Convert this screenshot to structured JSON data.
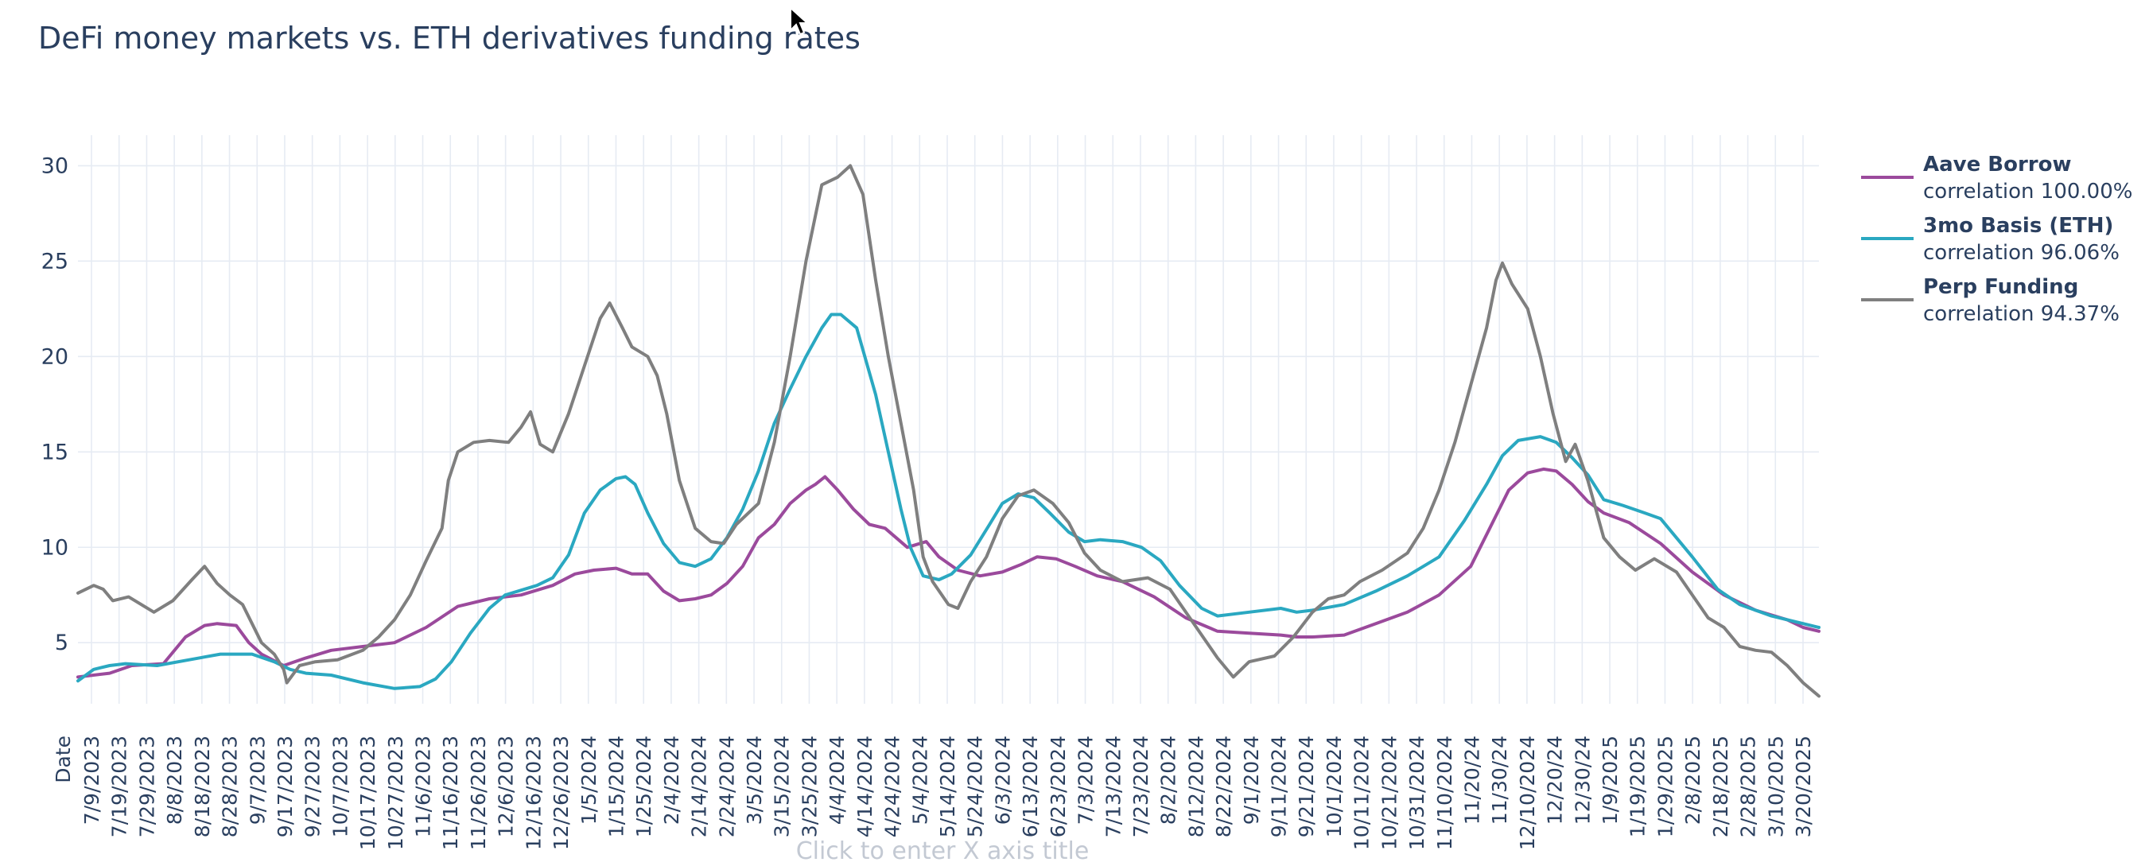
{
  "chart_data": {
    "type": "line",
    "title": "DeFi money markets vs. ETH derivatives funding rates",
    "xlabel_placeholder": "Click to enter X axis title",
    "x_first_label": "Date",
    "ylim": [
      1.8,
      31.6
    ],
    "yticks": [
      5,
      10,
      15,
      20,
      25,
      30
    ],
    "ytick_labels": [
      "5",
      "10",
      "15",
      "20",
      "25",
      "30"
    ],
    "x_tick_labels": [
      "7/9/2023",
      "7/19/2023",
      "7/29/2023",
      "8/8/2023",
      "8/18/2023",
      "8/28/2023",
      "9/7/2023",
      "9/17/2023",
      "9/27/2023",
      "10/7/2023",
      "10/17/2023",
      "10/27/2023",
      "11/6/2023",
      "11/16/2023",
      "11/26/2023",
      "12/6/2023",
      "12/16/2023",
      "12/26/2023",
      "1/5/2024",
      "1/15/2024",
      "1/25/2024",
      "2/4/2024",
      "2/14/2024",
      "2/24/2024",
      "3/5/2024",
      "3/15/2024",
      "3/25/2024",
      "4/4/2024",
      "4/14/2024",
      "4/24/2024",
      "5/4/2024",
      "5/14/2024",
      "5/24/2024",
      "6/3/2024",
      "6/13/2024",
      "6/23/2024",
      "7/3/2024",
      "7/13/2024",
      "7/23/2024",
      "8/2/2024",
      "8/12/2024",
      "8/22/2024",
      "9/1/2024",
      "9/11/2024",
      "9/21/2024",
      "10/1/2024",
      "10/11/2024",
      "10/21/2024",
      "10/31/2024",
      "11/10/2024",
      "11/20/24",
      "11/30/24",
      "12/10/2024",
      "12/20/24",
      "12/30/24",
      "1/9/2025",
      "1/19/2025",
      "1/29/2025",
      "2/8/2025",
      "2/18/2025",
      "2/28/2025",
      "3/10/2025",
      "3/20/2025"
    ],
    "grid": true,
    "legend_position": "right",
    "series": [
      {
        "name": "Aave Borrow",
        "legend_sub": "correlation 100.00%",
        "color": "#9b4a9c",
        "points": [
          [
            0,
            3.2
          ],
          [
            10,
            3.4
          ],
          [
            17,
            3.8
          ],
          [
            27,
            3.9
          ],
          [
            34,
            5.3
          ],
          [
            40,
            5.9
          ],
          [
            44,
            6.0
          ],
          [
            50,
            5.9
          ],
          [
            54,
            5.0
          ],
          [
            58,
            4.4
          ],
          [
            65,
            3.8
          ],
          [
            72,
            4.2
          ],
          [
            80,
            4.6
          ],
          [
            90,
            4.8
          ],
          [
            100,
            5.0
          ],
          [
            110,
            5.8
          ],
          [
            120,
            6.9
          ],
          [
            130,
            7.3
          ],
          [
            140,
            7.5
          ],
          [
            150,
            8.0
          ],
          [
            157,
            8.6
          ],
          [
            163,
            8.8
          ],
          [
            170,
            8.9
          ],
          [
            175,
            8.6
          ],
          [
            180,
            8.6
          ],
          [
            185,
            7.7
          ],
          [
            190,
            7.2
          ],
          [
            195,
            7.3
          ],
          [
            200,
            7.5
          ],
          [
            205,
            8.1
          ],
          [
            210,
            9.0
          ],
          [
            215,
            10.5
          ],
          [
            220,
            11.2
          ],
          [
            225,
            12.3
          ],
          [
            230,
            13.0
          ],
          [
            233,
            13.3
          ],
          [
            236,
            13.7
          ],
          [
            240,
            13.0
          ],
          [
            245,
            12.0
          ],
          [
            250,
            11.2
          ],
          [
            255,
            11.0
          ],
          [
            262,
            10.0
          ],
          [
            268,
            10.3
          ],
          [
            272,
            9.5
          ],
          [
            278,
            8.8
          ],
          [
            285,
            8.5
          ],
          [
            292,
            8.7
          ],
          [
            298,
            9.1
          ],
          [
            303,
            9.5
          ],
          [
            309,
            9.4
          ],
          [
            315,
            9.0
          ],
          [
            322,
            8.5
          ],
          [
            330,
            8.2
          ],
          [
            340,
            7.4
          ],
          [
            350,
            6.3
          ],
          [
            360,
            5.6
          ],
          [
            370,
            5.5
          ],
          [
            380,
            5.4
          ],
          [
            385,
            5.3
          ],
          [
            390,
            5.3
          ],
          [
            400,
            5.4
          ],
          [
            410,
            6.0
          ],
          [
            420,
            6.6
          ],
          [
            430,
            7.5
          ],
          [
            440,
            9.0
          ],
          [
            446,
            11.0
          ],
          [
            452,
            13.0
          ],
          [
            458,
            13.9
          ],
          [
            463,
            14.1
          ],
          [
            467,
            14.0
          ],
          [
            472,
            13.3
          ],
          [
            477,
            12.4
          ],
          [
            482,
            11.8
          ],
          [
            490,
            11.3
          ],
          [
            500,
            10.2
          ],
          [
            510,
            8.7
          ],
          [
            520,
            7.5
          ],
          [
            530,
            6.7
          ],
          [
            540,
            6.2
          ],
          [
            545,
            5.8
          ],
          [
            550,
            5.6
          ]
        ]
      },
      {
        "name": "3mo Basis (ETH)",
        "legend_sub": "correlation 96.06%",
        "color": "#2aa8c1",
        "points": [
          [
            0,
            3.0
          ],
          [
            5,
            3.6
          ],
          [
            10,
            3.8
          ],
          [
            15,
            3.9
          ],
          [
            25,
            3.8
          ],
          [
            35,
            4.1
          ],
          [
            45,
            4.4
          ],
          [
            55,
            4.4
          ],
          [
            62,
            4.0
          ],
          [
            67,
            3.6
          ],
          [
            72,
            3.4
          ],
          [
            80,
            3.3
          ],
          [
            90,
            2.9
          ],
          [
            100,
            2.6
          ],
          [
            108,
            2.7
          ],
          [
            113,
            3.1
          ],
          [
            118,
            4.0
          ],
          [
            124,
            5.5
          ],
          [
            130,
            6.8
          ],
          [
            135,
            7.5
          ],
          [
            145,
            8.0
          ],
          [
            150,
            8.4
          ],
          [
            155,
            9.6
          ],
          [
            160,
            11.8
          ],
          [
            165,
            13.0
          ],
          [
            170,
            13.6
          ],
          [
            173,
            13.7
          ],
          [
            176,
            13.3
          ],
          [
            180,
            11.8
          ],
          [
            185,
            10.2
          ],
          [
            190,
            9.2
          ],
          [
            195,
            9.0
          ],
          [
            200,
            9.4
          ],
          [
            205,
            10.5
          ],
          [
            210,
            12.0
          ],
          [
            215,
            14.0
          ],
          [
            220,
            16.5
          ],
          [
            225,
            18.3
          ],
          [
            230,
            20.0
          ],
          [
            235,
            21.5
          ],
          [
            238,
            22.2
          ],
          [
            241,
            22.2
          ],
          [
            246,
            21.5
          ],
          [
            252,
            18.0
          ],
          [
            256,
            15.0
          ],
          [
            260,
            12.0
          ],
          [
            263,
            10.0
          ],
          [
            267,
            8.5
          ],
          [
            272,
            8.3
          ],
          [
            276,
            8.6
          ],
          [
            282,
            9.6
          ],
          [
            288,
            11.2
          ],
          [
            292,
            12.3
          ],
          [
            297,
            12.8
          ],
          [
            302,
            12.6
          ],
          [
            307,
            11.8
          ],
          [
            313,
            10.8
          ],
          [
            318,
            10.3
          ],
          [
            323,
            10.4
          ],
          [
            330,
            10.3
          ],
          [
            336,
            10.0
          ],
          [
            342,
            9.3
          ],
          [
            348,
            8.0
          ],
          [
            355,
            6.8
          ],
          [
            360,
            6.4
          ],
          [
            370,
            6.6
          ],
          [
            380,
            6.8
          ],
          [
            385,
            6.6
          ],
          [
            390,
            6.7
          ],
          [
            400,
            7.0
          ],
          [
            410,
            7.7
          ],
          [
            420,
            8.5
          ],
          [
            430,
            9.5
          ],
          [
            438,
            11.4
          ],
          [
            445,
            13.3
          ],
          [
            450,
            14.8
          ],
          [
            455,
            15.6
          ],
          [
            462,
            15.8
          ],
          [
            467,
            15.5
          ],
          [
            472,
            14.7
          ],
          [
            477,
            13.8
          ],
          [
            482,
            12.5
          ],
          [
            488,
            12.2
          ],
          [
            495,
            11.8
          ],
          [
            500,
            11.5
          ],
          [
            510,
            9.5
          ],
          [
            518,
            7.8
          ],
          [
            525,
            7.0
          ],
          [
            535,
            6.4
          ],
          [
            545,
            6.0
          ],
          [
            550,
            5.8
          ]
        ]
      },
      {
        "name": "Perp Funding",
        "legend_sub": "correlation 94.37%",
        "color": "#7f7f7f",
        "points": [
          [
            0,
            7.6
          ],
          [
            5,
            8.0
          ],
          [
            8,
            7.8
          ],
          [
            11,
            7.2
          ],
          [
            16,
            7.4
          ],
          [
            20,
            7.0
          ],
          [
            24,
            6.6
          ],
          [
            30,
            7.2
          ],
          [
            36,
            8.3
          ],
          [
            40,
            9.0
          ],
          [
            44,
            8.1
          ],
          [
            48,
            7.5
          ],
          [
            52,
            7.0
          ],
          [
            55,
            6.0
          ],
          [
            58,
            5.0
          ],
          [
            62,
            4.4
          ],
          [
            65,
            3.6
          ],
          [
            66,
            2.9
          ],
          [
            70,
            3.8
          ],
          [
            75,
            4.0
          ],
          [
            82,
            4.1
          ],
          [
            90,
            4.6
          ],
          [
            95,
            5.3
          ],
          [
            100,
            6.2
          ],
          [
            105,
            7.5
          ],
          [
            110,
            9.3
          ],
          [
            115,
            11.0
          ],
          [
            117,
            13.5
          ],
          [
            120,
            15.0
          ],
          [
            125,
            15.5
          ],
          [
            130,
            15.6
          ],
          [
            136,
            15.5
          ],
          [
            140,
            16.3
          ],
          [
            143,
            17.1
          ],
          [
            146,
            15.4
          ],
          [
            150,
            15.0
          ],
          [
            155,
            17.0
          ],
          [
            160,
            19.5
          ],
          [
            165,
            22.0
          ],
          [
            168,
            22.8
          ],
          [
            172,
            21.5
          ],
          [
            175,
            20.5
          ],
          [
            180,
            20.0
          ],
          [
            183,
            19.0
          ],
          [
            186,
            17.0
          ],
          [
            190,
            13.5
          ],
          [
            195,
            11.0
          ],
          [
            200,
            10.3
          ],
          [
            204,
            10.2
          ],
          [
            208,
            11.2
          ],
          [
            215,
            12.3
          ],
          [
            220,
            15.5
          ],
          [
            225,
            20.0
          ],
          [
            230,
            25.0
          ],
          [
            235,
            29.0
          ],
          [
            240,
            29.4
          ],
          [
            244,
            30.0
          ],
          [
            248,
            28.5
          ],
          [
            252,
            24.0
          ],
          [
            256,
            20.0
          ],
          [
            260,
            16.5
          ],
          [
            264,
            13.0
          ],
          [
            267,
            9.5
          ],
          [
            270,
            8.2
          ],
          [
            275,
            7.0
          ],
          [
            278,
            6.8
          ],
          [
            282,
            8.2
          ],
          [
            287,
            9.5
          ],
          [
            292,
            11.5
          ],
          [
            297,
            12.7
          ],
          [
            302,
            13.0
          ],
          [
            308,
            12.3
          ],
          [
            313,
            11.3
          ],
          [
            318,
            9.7
          ],
          [
            323,
            8.8
          ],
          [
            330,
            8.2
          ],
          [
            338,
            8.4
          ],
          [
            345,
            7.8
          ],
          [
            350,
            6.6
          ],
          [
            355,
            5.4
          ],
          [
            360,
            4.2
          ],
          [
            365,
            3.2
          ],
          [
            370,
            4.0
          ],
          [
            378,
            4.3
          ],
          [
            384,
            5.3
          ],
          [
            390,
            6.6
          ],
          [
            395,
            7.3
          ],
          [
            400,
            7.5
          ],
          [
            405,
            8.2
          ],
          [
            412,
            8.8
          ],
          [
            420,
            9.7
          ],
          [
            425,
            11.0
          ],
          [
            430,
            13.0
          ],
          [
            435,
            15.5
          ],
          [
            440,
            18.5
          ],
          [
            445,
            21.5
          ],
          [
            448,
            24.0
          ],
          [
            450,
            24.9
          ],
          [
            453,
            23.8
          ],
          [
            458,
            22.5
          ],
          [
            462,
            20.0
          ],
          [
            466,
            17.0
          ],
          [
            470,
            14.5
          ],
          [
            473,
            15.4
          ],
          [
            477,
            13.5
          ],
          [
            482,
            10.5
          ],
          [
            487,
            9.5
          ],
          [
            492,
            8.8
          ],
          [
            498,
            9.4
          ],
          [
            505,
            8.7
          ],
          [
            510,
            7.5
          ],
          [
            515,
            6.3
          ],
          [
            520,
            5.8
          ],
          [
            525,
            4.8
          ],
          [
            530,
            4.6
          ],
          [
            535,
            4.5
          ],
          [
            540,
            3.8
          ],
          [
            545,
            2.9
          ],
          [
            550,
            2.2
          ]
        ]
      }
    ]
  },
  "icons": {
    "cursor": "mouse-pointer-icon"
  }
}
